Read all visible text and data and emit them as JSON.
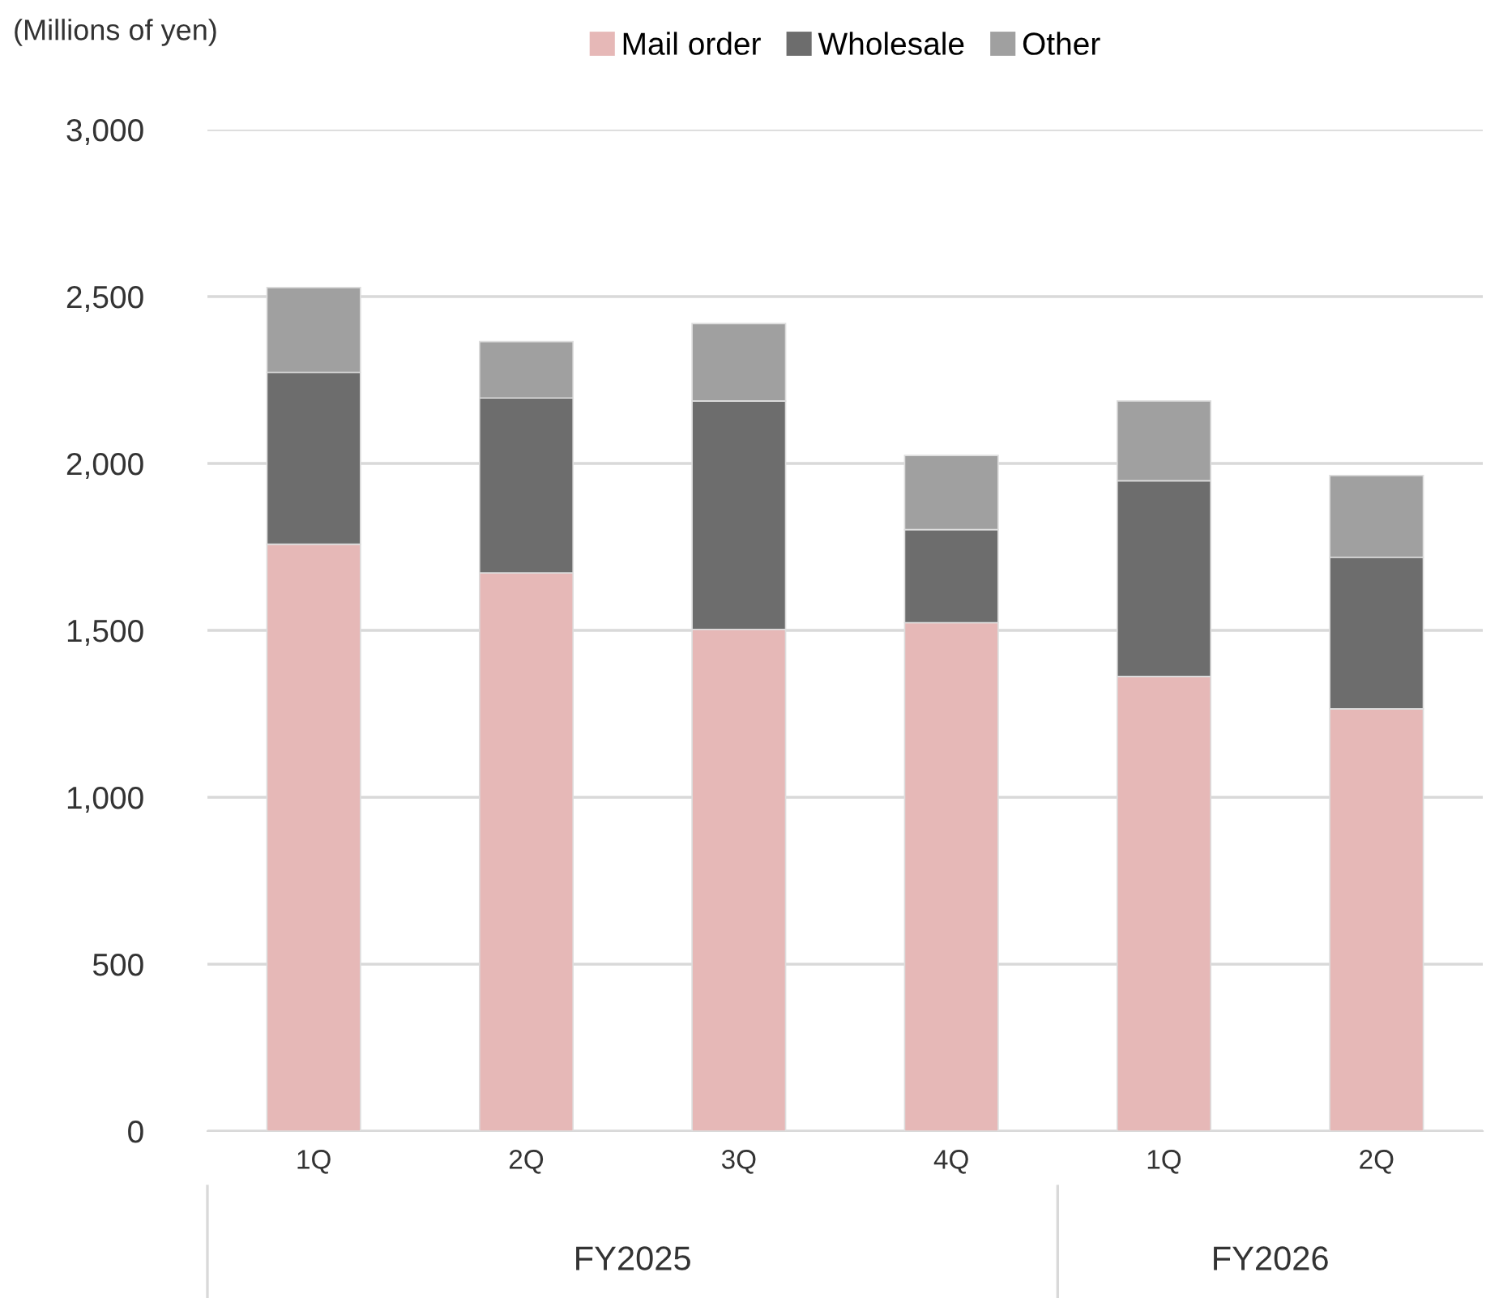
{
  "chart_data": {
    "type": "bar",
    "stacked": true,
    "ylabel": "(Millions of yen)",
    "categories": [
      "1Q",
      "2Q",
      "3Q",
      "4Q",
      "1Q",
      "2Q"
    ],
    "series": [
      {
        "name": "Mail order",
        "color": "#e6b8b7",
        "values": [
          1758,
          1672,
          1503,
          1523,
          1362,
          1265
        ]
      },
      {
        "name": "Wholesale",
        "color": "#6d6d6d",
        "values": [
          515,
          524,
          684,
          279,
          586,
          454
        ]
      },
      {
        "name": "Other",
        "color": "#a0a0a0",
        "values": [
          254,
          169,
          232,
          222,
          239,
          245
        ]
      }
    ],
    "ylim": [
      0,
      3000
    ],
    "yticks": [
      {
        "value": 0,
        "label": "0"
      },
      {
        "value": 500,
        "label": "500"
      },
      {
        "value": 1000,
        "label": "1,000"
      },
      {
        "value": 1500,
        "label": "1,500"
      },
      {
        "value": 2000,
        "label": "2,000"
      },
      {
        "value": 2500,
        "label": "2,500"
      },
      {
        "value": 3000,
        "label": "3,000"
      }
    ],
    "grid": "y",
    "legend": "top",
    "annotations": [
      "FY2025",
      "FY2026"
    ]
  }
}
